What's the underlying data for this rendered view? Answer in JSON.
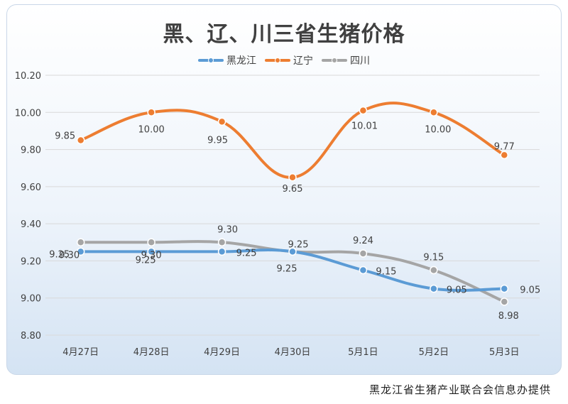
{
  "chart_data": {
    "type": "line",
    "title": "黑、辽、川三省生猪价格",
    "categories": [
      "4月27日",
      "4月28日",
      "4月29日",
      "4月30日",
      "5月1日",
      "5月2日",
      "5月3日"
    ],
    "ylim": [
      8.8,
      10.2
    ],
    "yticks": [
      "10.20",
      "10.00",
      "9.80",
      "9.60",
      "9.40",
      "9.20",
      "9.00",
      "8.80"
    ],
    "grid": true,
    "legend_position": "top",
    "series": [
      {
        "name": "黑龙江",
        "color": "#5b9bd5",
        "values": [
          9.25,
          9.25,
          9.25,
          9.25,
          9.15,
          9.05,
          9.05
        ],
        "labels": [
          "9.25",
          "9.25",
          "9.25",
          "9.25",
          "9.15",
          "9.05",
          "9.05"
        ]
      },
      {
        "name": "辽宁",
        "color": "#ed7d31",
        "values": [
          9.85,
          10.0,
          9.95,
          9.65,
          10.01,
          10.0,
          9.77
        ],
        "labels": [
          "9.85",
          "10.00",
          "9.95",
          "9.65",
          "10.01",
          "10.00",
          "9.77"
        ]
      },
      {
        "name": "四川",
        "color": "#a5a5a5",
        "values": [
          9.3,
          9.3,
          9.3,
          9.25,
          9.24,
          9.15,
          8.98
        ],
        "labels": [
          "9.30",
          "9.30",
          "9.30",
          "9.25",
          "9.24",
          "9.15",
          "8.98"
        ]
      }
    ]
  },
  "footer": {
    "source_text": "黑龙江省生猪产业联合会信息办提供"
  }
}
